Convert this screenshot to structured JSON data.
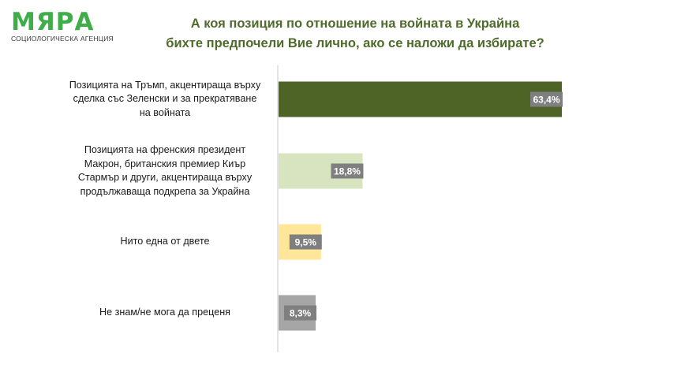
{
  "logo": {
    "word": "МЯРА",
    "subtitle": "СОЦИОЛОГИЧЕСКА АГЕНЦИЯ"
  },
  "chart_data": {
    "type": "bar",
    "orientation": "horizontal",
    "title_lines": [
      "А коя позиция по отношение на войната в Украйна",
      "бихте предпочели Вие лично, ако се наложи да избирате?"
    ],
    "categories": [
      "Позицията на Тръмп, акцентираща върху сделка със Зеленски и за прекратяване на войната",
      "Позицията на френския президент Макрон, британския премиер Киър Стармър и други, акцентираща върху продължаваща подкрепа за Украйна",
      "Нито една от двете",
      "Не знам/не мога да преценя"
    ],
    "category_lines": [
      [
        "Позицията на Тръмп, акцентираща върху",
        "сделка със Зеленски и за прекратяване",
        "на войната"
      ],
      [
        "Позицията на френския президент",
        "Макрон, британския премиер Киър",
        "Стармър и други, акцентираща върху",
        "продължаваща подкрепа за Украйна"
      ],
      [
        "Нито една от двете"
      ],
      [
        "Не знам/не мога да преценя"
      ]
    ],
    "values": [
      63.4,
      18.8,
      9.5,
      8.3
    ],
    "value_labels": [
      "63,4%",
      "18,8%",
      "9,5%",
      "8,3%"
    ],
    "colors": [
      "#4e6326",
      "#d8e4bf",
      "#ffe699",
      "#a6a6a6"
    ],
    "label_box_color": "#7f7f7f",
    "xlim": [
      0,
      100
    ],
    "grid": false,
    "legend": "none"
  }
}
